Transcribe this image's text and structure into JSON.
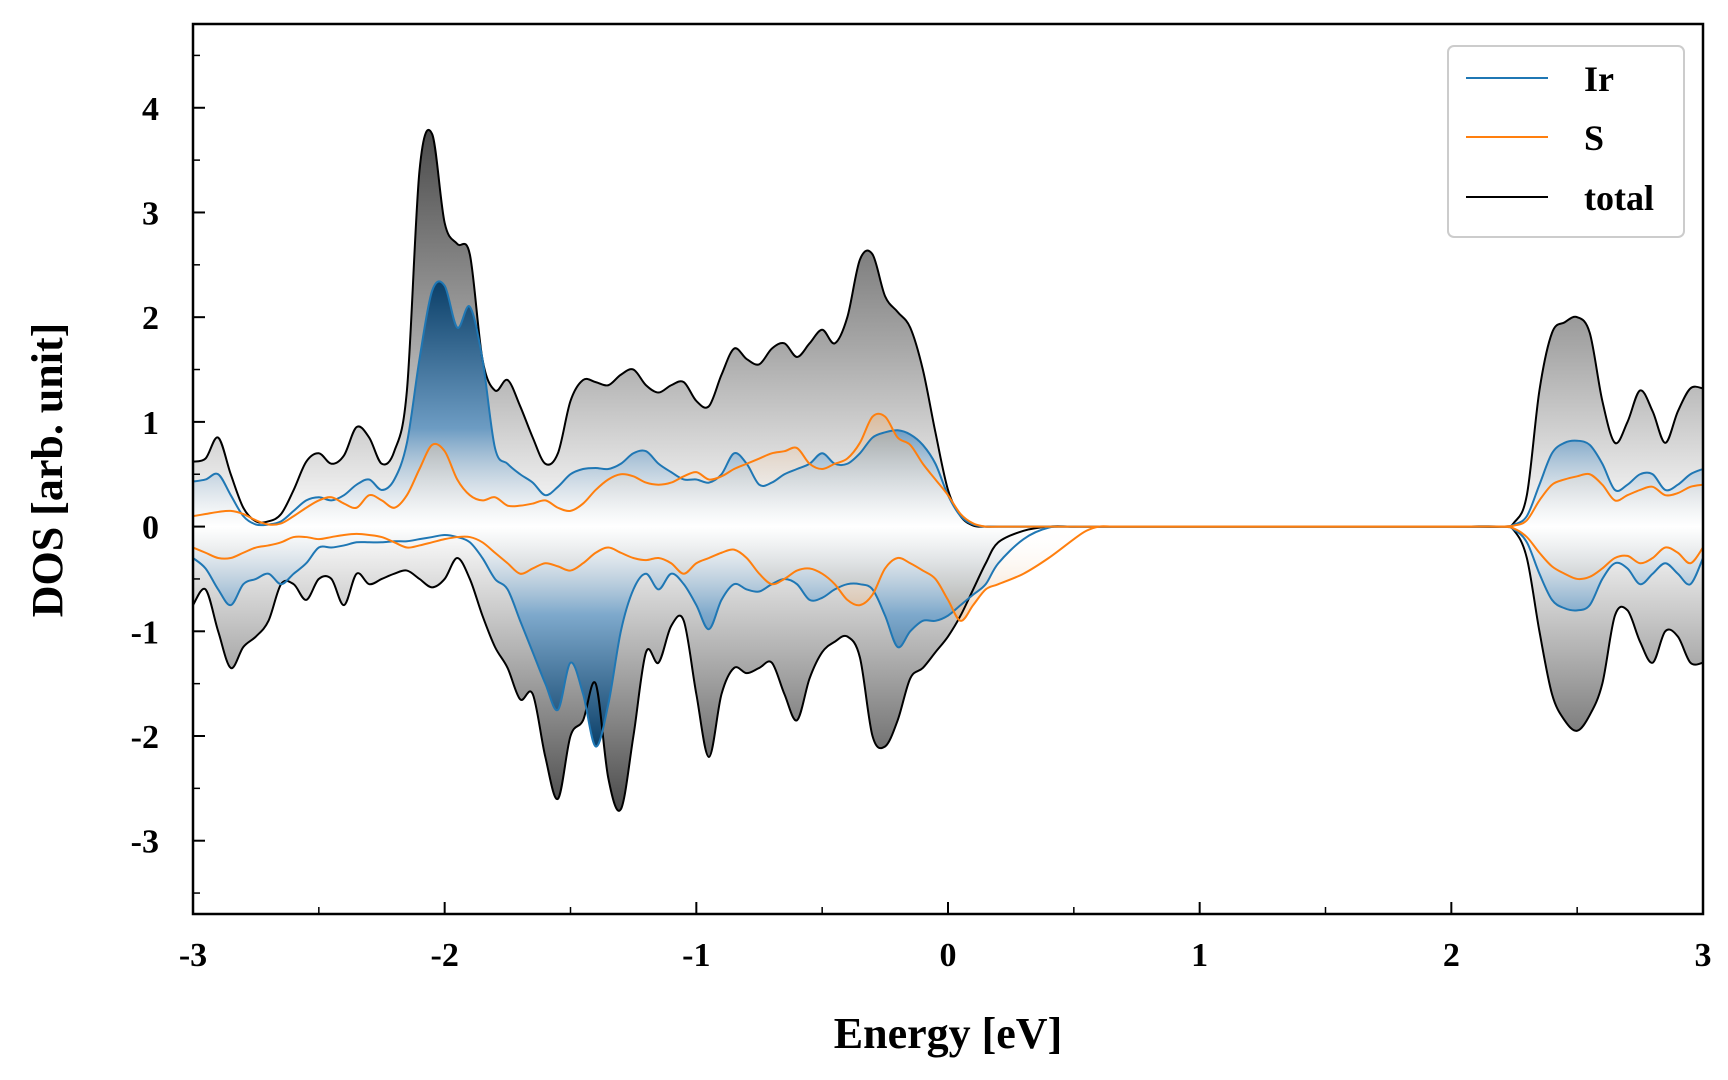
{
  "chart_data": {
    "type": "line",
    "title": "",
    "xlabel": "Energy [eV]",
    "ylabel": "DOS [arb. unit]",
    "xlim": [
      -3,
      3
    ],
    "ylim": [
      -3.7,
      4.8
    ],
    "xticks": [
      -3,
      -2,
      -1,
      0,
      1,
      2,
      3
    ],
    "xtick_labels": [
      "-3",
      "-2",
      "-1",
      "0",
      "1",
      "2",
      "3"
    ],
    "yticks": [
      -3,
      -2,
      -1,
      0,
      1,
      2,
      3,
      4
    ],
    "ytick_labels": [
      "-3",
      "-2",
      "-1",
      "0",
      "1",
      "2",
      "3",
      "4"
    ],
    "grid": false,
    "legend_position": "top-right",
    "colors": {
      "Ir": "#1f77b4",
      "S": "#ff7f0e",
      "total": "#000000",
      "ir_fill": "#0e4a78",
      "total_fill": "#555555"
    },
    "x": [
      -3.0,
      -2.95,
      -2.9,
      -2.85,
      -2.8,
      -2.75,
      -2.7,
      -2.65,
      -2.6,
      -2.55,
      -2.5,
      -2.45,
      -2.4,
      -2.35,
      -2.3,
      -2.25,
      -2.2,
      -2.15,
      -2.1,
      -2.05,
      -2.0,
      -1.95,
      -1.9,
      -1.85,
      -1.8,
      -1.75,
      -1.7,
      -1.65,
      -1.6,
      -1.55,
      -1.5,
      -1.45,
      -1.4,
      -1.35,
      -1.3,
      -1.25,
      -1.2,
      -1.15,
      -1.1,
      -1.05,
      -1.0,
      -0.95,
      -0.9,
      -0.85,
      -0.8,
      -0.75,
      -0.7,
      -0.65,
      -0.6,
      -0.55,
      -0.5,
      -0.45,
      -0.4,
      -0.35,
      -0.3,
      -0.25,
      -0.2,
      -0.15,
      -0.1,
      -0.05,
      0.0,
      0.05,
      0.1,
      0.15,
      0.2,
      0.3,
      0.4,
      0.5,
      0.55,
      0.6,
      0.65,
      0.7,
      1.0,
      1.5,
      2.0,
      2.2,
      2.25,
      2.3,
      2.35,
      2.4,
      2.45,
      2.5,
      2.55,
      2.6,
      2.65,
      2.7,
      2.75,
      2.8,
      2.85,
      2.9,
      2.95,
      3.0
    ],
    "series": [
      {
        "name": "Ir",
        "up": [
          0.43,
          0.45,
          0.5,
          0.3,
          0.1,
          0.02,
          0.02,
          0.05,
          0.15,
          0.25,
          0.28,
          0.25,
          0.3,
          0.4,
          0.45,
          0.35,
          0.45,
          0.8,
          1.6,
          2.25,
          2.3,
          1.9,
          2.1,
          1.6,
          0.75,
          0.6,
          0.5,
          0.42,
          0.3,
          0.38,
          0.5,
          0.55,
          0.56,
          0.55,
          0.6,
          0.7,
          0.72,
          0.6,
          0.52,
          0.45,
          0.45,
          0.42,
          0.5,
          0.7,
          0.6,
          0.4,
          0.42,
          0.5,
          0.55,
          0.6,
          0.7,
          0.6,
          0.6,
          0.7,
          0.85,
          0.9,
          0.92,
          0.88,
          0.78,
          0.6,
          0.3,
          0.1,
          0.02,
          0.0,
          0.0,
          0.0,
          0.0,
          0.0,
          0.0,
          0.0,
          0.0,
          0.0,
          0.0,
          0.0,
          0.0,
          0.0,
          0.02,
          0.1,
          0.4,
          0.7,
          0.8,
          0.82,
          0.78,
          0.6,
          0.35,
          0.4,
          0.5,
          0.5,
          0.35,
          0.4,
          0.5,
          0.55
        ],
        "down": [
          -0.3,
          -0.4,
          -0.6,
          -0.75,
          -0.55,
          -0.5,
          -0.45,
          -0.55,
          -0.45,
          -0.35,
          -0.2,
          -0.2,
          -0.18,
          -0.15,
          -0.15,
          -0.15,
          -0.14,
          -0.14,
          -0.12,
          -0.1,
          -0.08,
          -0.1,
          -0.15,
          -0.3,
          -0.5,
          -0.6,
          -0.9,
          -1.2,
          -1.5,
          -1.75,
          -1.3,
          -1.6,
          -2.1,
          -1.7,
          -1.0,
          -0.6,
          -0.45,
          -0.6,
          -0.45,
          -0.55,
          -0.75,
          -0.98,
          -0.7,
          -0.55,
          -0.6,
          -0.62,
          -0.55,
          -0.5,
          -0.55,
          -0.7,
          -0.68,
          -0.6,
          -0.55,
          -0.55,
          -0.6,
          -0.85,
          -1.15,
          -1.0,
          -0.9,
          -0.9,
          -0.85,
          -0.75,
          -0.65,
          -0.55,
          -0.35,
          -0.12,
          -0.01,
          0.0,
          0.0,
          0.0,
          0.0,
          0.0,
          0.0,
          0.0,
          0.0,
          0.0,
          -0.03,
          -0.15,
          -0.45,
          -0.7,
          -0.78,
          -0.8,
          -0.75,
          -0.5,
          -0.35,
          -0.4,
          -0.55,
          -0.45,
          -0.35,
          -0.45,
          -0.55,
          -0.3
        ]
      },
      {
        "name": "S",
        "up": [
          0.1,
          0.12,
          0.14,
          0.15,
          0.12,
          0.06,
          0.02,
          0.03,
          0.1,
          0.18,
          0.25,
          0.28,
          0.22,
          0.18,
          0.3,
          0.25,
          0.18,
          0.3,
          0.55,
          0.78,
          0.72,
          0.45,
          0.3,
          0.25,
          0.28,
          0.2,
          0.2,
          0.22,
          0.25,
          0.18,
          0.15,
          0.22,
          0.35,
          0.45,
          0.5,
          0.48,
          0.42,
          0.4,
          0.42,
          0.48,
          0.52,
          0.45,
          0.48,
          0.55,
          0.6,
          0.65,
          0.7,
          0.72,
          0.75,
          0.6,
          0.55,
          0.6,
          0.65,
          0.8,
          1.05,
          1.05,
          0.85,
          0.78,
          0.6,
          0.45,
          0.3,
          0.12,
          0.03,
          0.0,
          0.0,
          0.0,
          0.0,
          0.0,
          0.0,
          0.0,
          0.0,
          0.0,
          0.0,
          0.0,
          0.0,
          0.0,
          0.01,
          0.06,
          0.25,
          0.4,
          0.45,
          0.48,
          0.5,
          0.4,
          0.25,
          0.3,
          0.35,
          0.38,
          0.3,
          0.32,
          0.38,
          0.4
        ],
        "down": [
          -0.2,
          -0.25,
          -0.3,
          -0.3,
          -0.25,
          -0.2,
          -0.18,
          -0.15,
          -0.1,
          -0.1,
          -0.12,
          -0.1,
          -0.08,
          -0.07,
          -0.08,
          -0.1,
          -0.15,
          -0.2,
          -0.18,
          -0.15,
          -0.12,
          -0.1,
          -0.1,
          -0.15,
          -0.25,
          -0.35,
          -0.45,
          -0.4,
          -0.35,
          -0.38,
          -0.42,
          -0.35,
          -0.25,
          -0.2,
          -0.25,
          -0.3,
          -0.32,
          -0.3,
          -0.35,
          -0.45,
          -0.35,
          -0.3,
          -0.25,
          -0.22,
          -0.3,
          -0.45,
          -0.55,
          -0.5,
          -0.42,
          -0.4,
          -0.45,
          -0.55,
          -0.7,
          -0.75,
          -0.65,
          -0.4,
          -0.3,
          -0.35,
          -0.42,
          -0.5,
          -0.7,
          -0.9,
          -0.75,
          -0.6,
          -0.55,
          -0.45,
          -0.3,
          -0.12,
          -0.04,
          0.0,
          0.0,
          0.0,
          0.0,
          0.0,
          0.0,
          0.0,
          -0.02,
          -0.1,
          -0.25,
          -0.38,
          -0.45,
          -0.5,
          -0.48,
          -0.4,
          -0.3,
          -0.28,
          -0.35,
          -0.3,
          -0.2,
          -0.25,
          -0.35,
          -0.2
        ]
      },
      {
        "name": "total",
        "up": [
          0.62,
          0.65,
          0.85,
          0.5,
          0.18,
          0.05,
          0.05,
          0.12,
          0.35,
          0.62,
          0.7,
          0.6,
          0.68,
          0.95,
          0.85,
          0.6,
          0.72,
          1.3,
          3.4,
          3.75,
          2.9,
          2.7,
          2.6,
          1.6,
          1.3,
          1.4,
          1.15,
          0.85,
          0.6,
          0.7,
          1.2,
          1.4,
          1.38,
          1.35,
          1.45,
          1.5,
          1.35,
          1.28,
          1.35,
          1.38,
          1.2,
          1.15,
          1.45,
          1.7,
          1.6,
          1.55,
          1.7,
          1.75,
          1.62,
          1.75,
          1.88,
          1.75,
          2.0,
          2.55,
          2.6,
          2.2,
          2.05,
          1.9,
          1.5,
          0.9,
          0.35,
          0.1,
          0.01,
          0.0,
          0.0,
          0.0,
          0.0,
          0.0,
          0.0,
          0.0,
          0.0,
          0.0,
          0.0,
          0.0,
          0.0,
          0.0,
          0.04,
          0.3,
          1.3,
          1.85,
          1.95,
          2.0,
          1.85,
          1.2,
          0.8,
          1.0,
          1.3,
          1.1,
          0.8,
          1.1,
          1.32,
          1.32
        ],
        "down": [
          -0.75,
          -0.6,
          -1.0,
          -1.35,
          -1.15,
          -1.05,
          -0.9,
          -0.55,
          -0.55,
          -0.7,
          -0.5,
          -0.5,
          -0.75,
          -0.45,
          -0.55,
          -0.5,
          -0.45,
          -0.42,
          -0.5,
          -0.58,
          -0.5,
          -0.3,
          -0.5,
          -0.85,
          -1.15,
          -1.35,
          -1.65,
          -1.6,
          -2.2,
          -2.6,
          -2.0,
          -1.85,
          -1.5,
          -2.4,
          -2.7,
          -2.0,
          -1.2,
          -1.3,
          -0.95,
          -0.9,
          -1.6,
          -2.2,
          -1.6,
          -1.35,
          -1.4,
          -1.35,
          -1.3,
          -1.6,
          -1.85,
          -1.45,
          -1.2,
          -1.1,
          -1.05,
          -1.25,
          -2.0,
          -2.1,
          -1.85,
          -1.45,
          -1.35,
          -1.2,
          -1.05,
          -0.85,
          -0.6,
          -0.35,
          -0.15,
          -0.04,
          0.0,
          0.0,
          0.0,
          0.0,
          0.0,
          0.0,
          0.0,
          0.0,
          0.0,
          0.0,
          -0.04,
          -0.3,
          -1.0,
          -1.6,
          -1.85,
          -1.95,
          -1.8,
          -1.5,
          -0.85,
          -0.8,
          -1.1,
          -1.3,
          -1.0,
          -1.05,
          -1.3,
          -1.3
        ]
      }
    ]
  }
}
